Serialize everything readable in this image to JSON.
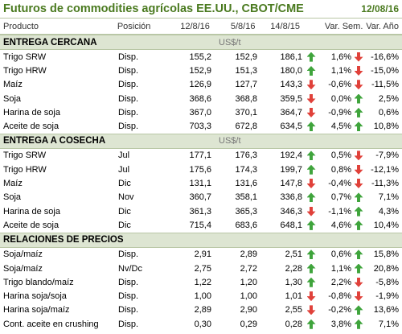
{
  "title": "Futuros de commodities agrícolas EE.UU., CBOT/CME",
  "date": "12/08/16",
  "columns": [
    "Producto",
    "Posición",
    "12/8/16",
    "5/8/16",
    "14/8/15",
    "Var. Sem.",
    "Var. Año"
  ],
  "sections": [
    {
      "name": "ENTREGA CERCANA",
      "unit": "US$/t",
      "rows": [
        {
          "producto": "Trigo SRW",
          "posicion": "Disp.",
          "v1": "155,2",
          "v2": "152,9",
          "v3": "186,1",
          "a1": "up",
          "v4": "1,6%",
          "a2": "down",
          "v5": "-16,6%"
        },
        {
          "producto": "Trigo HRW",
          "posicion": "Disp.",
          "v1": "152,9",
          "v2": "151,3",
          "v3": "180,0",
          "a1": "up",
          "v4": "1,1%",
          "a2": "down",
          "v5": "-15,0%"
        },
        {
          "producto": "Maíz",
          "posicion": "Disp.",
          "v1": "126,9",
          "v2": "127,7",
          "v3": "143,3",
          "a1": "down",
          "v4": "-0,6%",
          "a2": "down",
          "v5": "-11,5%"
        },
        {
          "producto": "Soja",
          "posicion": "Disp.",
          "v1": "368,6",
          "v2": "368,8",
          "v3": "359,5",
          "a1": "down",
          "v4": "0,0%",
          "a2": "up",
          "v5": "2,5%"
        },
        {
          "producto": "Harina de soja",
          "posicion": "Disp.",
          "v1": "367,0",
          "v2": "370,1",
          "v3": "364,7",
          "a1": "down",
          "v4": "-0,9%",
          "a2": "up",
          "v5": "0,6%"
        },
        {
          "producto": "Aceite de soja",
          "posicion": "Disp.",
          "v1": "703,3",
          "v2": "672,8",
          "v3": "634,5",
          "a1": "up",
          "v4": "4,5%",
          "a2": "up",
          "v5": "10,8%"
        }
      ]
    },
    {
      "name": "ENTREGA A COSECHA",
      "unit": "US$/t",
      "rows": [
        {
          "producto": "Trigo SRW",
          "posicion": "Jul",
          "v1": "177,1",
          "v2": "176,3",
          "v3": "192,4",
          "a1": "up",
          "v4": "0,5%",
          "a2": "down",
          "v5": "-7,9%"
        },
        {
          "producto": "Trigo HRW",
          "posicion": "Jul",
          "v1": "175,6",
          "v2": "174,3",
          "v3": "199,7",
          "a1": "up",
          "v4": "0,8%",
          "a2": "down",
          "v5": "-12,1%"
        },
        {
          "producto": "Maíz",
          "posicion": "Dic",
          "v1": "131,1",
          "v2": "131,6",
          "v3": "147,8",
          "a1": "down",
          "v4": "-0,4%",
          "a2": "down",
          "v5": "-11,3%"
        },
        {
          "producto": "Soja",
          "posicion": "Nov",
          "v1": "360,7",
          "v2": "358,1",
          "v3": "336,8",
          "a1": "up",
          "v4": "0,7%",
          "a2": "up",
          "v5": "7,1%"
        },
        {
          "producto": "Harina de soja",
          "posicion": "Dic",
          "v1": "361,3",
          "v2": "365,3",
          "v3": "346,3",
          "a1": "down",
          "v4": "-1,1%",
          "a2": "up",
          "v5": "4,3%"
        },
        {
          "producto": "Aceite de soja",
          "posicion": "Dic",
          "v1": "715,4",
          "v2": "683,6",
          "v3": "648,1",
          "a1": "up",
          "v4": "4,6%",
          "a2": "up",
          "v5": "10,4%"
        }
      ]
    },
    {
      "name": "RELACIONES DE PRECIOS",
      "unit": "",
      "rows": [
        {
          "producto": "Soja/maíz",
          "posicion": "Disp.",
          "v1": "2,91",
          "v2": "2,89",
          "v3": "2,51",
          "a1": "up",
          "v4": "0,6%",
          "a2": "up",
          "v5": "15,8%"
        },
        {
          "producto": "Soja/maíz",
          "posicion": "Nv/Dc",
          "v1": "2,75",
          "v2": "2,72",
          "v3": "2,28",
          "a1": "up",
          "v4": "1,1%",
          "a2": "up",
          "v5": "20,8%"
        },
        {
          "producto": "Trigo blando/maíz",
          "posicion": "Disp.",
          "v1": "1,22",
          "v2": "1,20",
          "v3": "1,30",
          "a1": "up",
          "v4": "2,2%",
          "a2": "down",
          "v5": "-5,8%"
        },
        {
          "producto": "Harina soja/soja",
          "posicion": "Disp.",
          "v1": "1,00",
          "v2": "1,00",
          "v3": "1,01",
          "a1": "down",
          "v4": "-0,8%",
          "a2": "down",
          "v5": "-1,9%"
        },
        {
          "producto": "Harina soja/maíz",
          "posicion": "Disp.",
          "v1": "2,89",
          "v2": "2,90",
          "v3": "2,55",
          "a1": "down",
          "v4": "-0,2%",
          "a2": "up",
          "v5": "13,6%"
        },
        {
          "producto": "Cont. aceite en crushing",
          "posicion": "Disp.",
          "v1": "0,30",
          "v2": "0,29",
          "v3": "0,28",
          "a1": "up",
          "v4": "3,8%",
          "a2": "up",
          "v5": "7,1%"
        }
      ]
    }
  ],
  "colors": {
    "title": "#4a7a1f",
    "section_bg": "#dde5d2",
    "border": "#b9c7a6",
    "up": "#3fa43c",
    "down": "#e0413a"
  }
}
